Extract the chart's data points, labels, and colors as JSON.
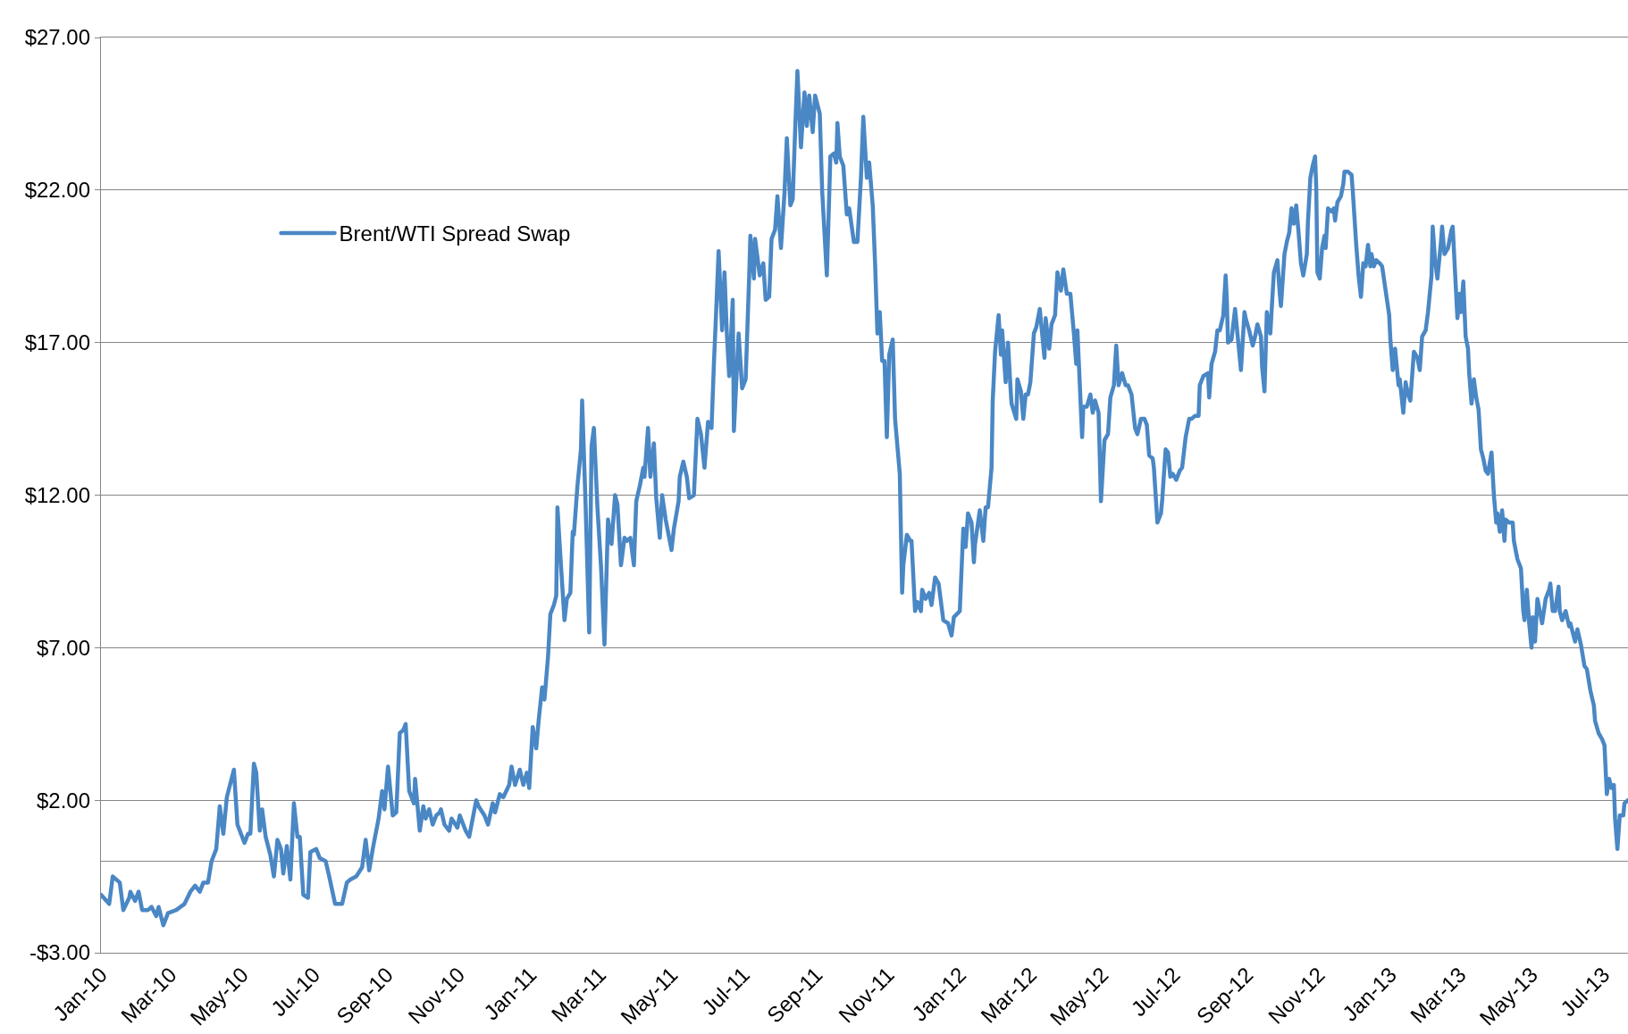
{
  "chart_data": {
    "type": "line",
    "xlim": [
      "2010-01-01",
      "2013-07-22"
    ],
    "ylim": [
      -3,
      27
    ],
    "xticks": [
      {
        "value": "2010-01-01",
        "label": "Jan-10"
      },
      {
        "value": "2010-03-01",
        "label": "Mar-10"
      },
      {
        "value": "2010-05-01",
        "label": "May-10"
      },
      {
        "value": "2010-07-01",
        "label": "Jul-10"
      },
      {
        "value": "2010-09-01",
        "label": "Sep-10"
      },
      {
        "value": "2010-11-01",
        "label": "Nov-10"
      },
      {
        "value": "2011-01-01",
        "label": "Jan-11"
      },
      {
        "value": "2011-03-01",
        "label": "Mar-11"
      },
      {
        "value": "2011-05-01",
        "label": "May-11"
      },
      {
        "value": "2011-07-01",
        "label": "Jul-11"
      },
      {
        "value": "2011-09-01",
        "label": "Sep-11"
      },
      {
        "value": "2011-11-01",
        "label": "Nov-11"
      },
      {
        "value": "2012-01-01",
        "label": "Jan-12"
      },
      {
        "value": "2012-03-01",
        "label": "Mar-12"
      },
      {
        "value": "2012-05-01",
        "label": "May-12"
      },
      {
        "value": "2012-07-01",
        "label": "Jul-12"
      },
      {
        "value": "2012-09-01",
        "label": "Sep-12"
      },
      {
        "value": "2012-11-01",
        "label": "Nov-12"
      },
      {
        "value": "2013-01-01",
        "label": "Jan-13"
      },
      {
        "value": "2013-03-01",
        "label": "Mar-13"
      },
      {
        "value": "2013-05-01",
        "label": "May-13"
      },
      {
        "value": "2013-07-01",
        "label": "Jul-13"
      }
    ],
    "yticks": [
      {
        "value": -3,
        "label": "-$3.00"
      },
      {
        "value": 2,
        "label": "$2.00"
      },
      {
        "value": 7,
        "label": "$7.00"
      },
      {
        "value": 12,
        "label": "$12.00"
      },
      {
        "value": 17,
        "label": "$17.00"
      },
      {
        "value": 22,
        "label": "$22.00"
      },
      {
        "value": 27,
        "label": "$27.00"
      }
    ],
    "grid": "y",
    "legend": "top left",
    "series": [
      {
        "name": "Brent/WTI Spread Swap",
        "color": "#4a87c5",
        "x": [
          "2010-01-01",
          "2010-01-08",
          "2010-01-11",
          "2010-01-17",
          "2010-01-20",
          "2010-01-25",
          "2010-01-26",
          "2010-01-30",
          "2010-02-02",
          "2010-02-05",
          "2010-02-10",
          "2010-02-13",
          "2010-02-17",
          "2010-02-19",
          "2010-02-23",
          "2010-02-27",
          "2010-03-06",
          "2010-03-13",
          "2010-03-18",
          "2010-03-22",
          "2010-03-26",
          "2010-03-29",
          "2010-04-02",
          "2010-04-05",
          "2010-04-09",
          "2010-04-12",
          "2010-04-15",
          "2010-04-18",
          "2010-04-24",
          "2010-04-27",
          "2010-05-03",
          "2010-05-06",
          "2010-05-08",
          "2010-05-11",
          "2010-05-13",
          "2010-05-16",
          "2010-05-18",
          "2010-05-21",
          "2010-05-25",
          "2010-05-28",
          "2010-05-31",
          "2010-06-03",
          "2010-06-05",
          "2010-06-08",
          "2010-06-11",
          "2010-06-14",
          "2010-06-17",
          "2010-06-19",
          "2010-06-22",
          "2010-06-26",
          "2010-06-28",
          "2010-07-03",
          "2010-07-06",
          "2010-07-11",
          "2010-07-14",
          "2010-07-19",
          "2010-07-25",
          "2010-07-29",
          "2010-08-01",
          "2010-08-06",
          "2010-08-11",
          "2010-08-14",
          "2010-08-17",
          "2010-08-20",
          "2010-08-25",
          "2010-08-28",
          "2010-08-30",
          "2010-09-02",
          "2010-09-06",
          "2010-09-09",
          "2010-09-12",
          "2010-09-15",
          "2010-09-17",
          "2010-09-20",
          "2010-09-24",
          "2010-09-25",
          "2010-09-29",
          "2010-10-02",
          "2010-10-04",
          "2010-10-07",
          "2010-10-10",
          "2010-10-13",
          "2010-10-16",
          "2010-10-17",
          "2010-10-20",
          "2010-10-24",
          "2010-10-26",
          "2010-10-31",
          "2010-11-02",
          "2010-11-07",
          "2010-11-10",
          "2010-11-13",
          "2010-11-16",
          "2010-11-18",
          "2010-11-23",
          "2010-11-26",
          "2010-11-30",
          "2010-12-02",
          "2010-12-06",
          "2010-12-09",
          "2010-12-14",
          "2010-12-16",
          "2010-12-19",
          "2010-12-23",
          "2010-12-26",
          "2010-12-29",
          "2010-12-31",
          "2011-01-03",
          "2011-01-06",
          "2011-01-08",
          "2011-01-11",
          "2011-01-13",
          "2011-01-16",
          "2011-01-18",
          "2011-01-21",
          "2011-01-23",
          "2011-01-24",
          "2011-01-27",
          "2011-01-30",
          "2011-02-01",
          "2011-02-04",
          "2011-02-06",
          "2011-02-07",
          "2011-02-10",
          "2011-02-13",
          "2011-02-14",
          "2011-02-17",
          "2011-02-20",
          "2011-02-22",
          "2011-02-24",
          "2011-02-27",
          "2011-03-02",
          "2011-03-05",
          "2011-03-08",
          "2011-03-11",
          "2011-03-14",
          "2011-03-16",
          "2011-03-19",
          "2011-03-22",
          "2011-03-24",
          "2011-03-27",
          "2011-03-30",
          "2011-04-01",
          "2011-04-04",
          "2011-04-07",
          "2011-04-08",
          "2011-04-11",
          "2011-04-13",
          "2011-04-16",
          "2011-04-18",
          "2011-04-21",
          "2011-04-23",
          "2011-04-26",
          "2011-05-01",
          "2011-05-03",
          "2011-05-07",
          "2011-05-08",
          "2011-05-11",
          "2011-05-14",
          "2011-05-16",
          "2011-05-20",
          "2011-05-23",
          "2011-05-26",
          "2011-05-29",
          "2011-06-01",
          "2011-06-04",
          "2011-06-06",
          "2011-06-08",
          "2011-06-10",
          "2011-06-13",
          "2011-06-15",
          "2011-06-17",
          "2011-06-19",
          "2011-06-22",
          "2011-06-23",
          "2011-06-27",
          "2011-06-30",
          "2011-07-03",
          "2011-07-06",
          "2011-07-07",
          "2011-07-10",
          "2011-07-11",
          "2011-07-15",
          "2011-07-18",
          "2011-07-20",
          "2011-07-23",
          "2011-07-25",
          "2011-07-28",
          "2011-07-30",
          "2011-08-02",
          "2011-08-05",
          "2011-08-07",
          "2011-08-10",
          "2011-08-12",
          "2011-08-14",
          "2011-08-16",
          "2011-08-19",
          "2011-08-22",
          "2011-08-24",
          "2011-08-26",
          "2011-08-29",
          "2011-08-31",
          "2011-09-04",
          "2011-09-06",
          "2011-09-10",
          "2011-09-13",
          "2011-09-16",
          "2011-09-18",
          "2011-09-19",
          "2011-09-21",
          "2011-09-24",
          "2011-09-27",
          "2011-09-29",
          "2011-10-03",
          "2011-10-06",
          "2011-10-09",
          "2011-10-11",
          "2011-10-14",
          "2011-10-16",
          "2011-10-19",
          "2011-10-21",
          "2011-10-23",
          "2011-10-25",
          "2011-10-27",
          "2011-10-29",
          "2011-10-31",
          "2011-11-02",
          "2011-11-05",
          "2011-11-07",
          "2011-11-11",
          "2011-11-13",
          "2011-11-14",
          "2011-11-17",
          "2011-11-20",
          "2011-11-21",
          "2011-11-24",
          "2011-11-26",
          "2011-11-29",
          "2011-11-30",
          "2011-12-03",
          "2011-12-06",
          "2011-12-08",
          "2011-12-11",
          "2011-12-14",
          "2011-12-18",
          "2011-12-22",
          "2011-12-25",
          "2011-12-27",
          "2012-01-01",
          "2012-01-04",
          "2012-01-06",
          "2012-01-08",
          "2012-01-11",
          "2012-01-13",
          "2012-01-14",
          "2012-01-18",
          "2012-01-21",
          "2012-01-23",
          "2012-01-25",
          "2012-01-28",
          "2012-01-29",
          "2012-01-31",
          "2012-02-03",
          "2012-02-05",
          "2012-02-06",
          "2012-02-09",
          "2012-02-11",
          "2012-02-13",
          "2012-02-14",
          "2012-02-18",
          "2012-02-19",
          "2012-02-22",
          "2012-02-24",
          "2012-02-26",
          "2012-02-28",
          "2012-03-01",
          "2012-03-04",
          "2012-03-06",
          "2012-03-09",
          "2012-03-11",
          "2012-03-13",
          "2012-03-14",
          "2012-03-17",
          "2012-03-19",
          "2012-03-22",
          "2012-03-24",
          "2012-03-27",
          "2012-03-29",
          "2012-04-01",
          "2012-04-04",
          "2012-04-07",
          "2012-04-09",
          "2012-04-10",
          "2012-04-14",
          "2012-04-15",
          "2012-04-18",
          "2012-04-21",
          "2012-04-23",
          "2012-04-25",
          "2012-04-28",
          "2012-04-30",
          "2012-05-03",
          "2012-05-06",
          "2012-05-08",
          "2012-05-11",
          "2012-05-13",
          "2012-05-15",
          "2012-05-18",
          "2012-05-21",
          "2012-05-23",
          "2012-05-26",
          "2012-05-29",
          "2012-05-31",
          "2012-06-03",
          "2012-06-06",
          "2012-06-08",
          "2012-06-10",
          "2012-06-13",
          "2012-06-14",
          "2012-06-17",
          "2012-06-20",
          "2012-06-21",
          "2012-06-24",
          "2012-06-26",
          "2012-06-28",
          "2012-06-30",
          "2012-07-03",
          "2012-07-06",
          "2012-07-08",
          "2012-07-11",
          "2012-07-14",
          "2012-07-16",
          "2012-07-19",
          "2012-07-22",
          "2012-07-23",
          "2012-07-26",
          "2012-07-30",
          "2012-07-31",
          "2012-08-02",
          "2012-08-05",
          "2012-08-07",
          "2012-08-09",
          "2012-08-12",
          "2012-08-14",
          "2012-08-15",
          "2012-08-16",
          "2012-08-19",
          "2012-08-22",
          "2012-08-24",
          "2012-08-27",
          "2012-08-30",
          "2012-08-31",
          "2012-09-03",
          "2012-09-06",
          "2012-09-08",
          "2012-09-10",
          "2012-09-13",
          "2012-09-14",
          "2012-09-16",
          "2012-09-18",
          "2012-09-21",
          "2012-09-22",
          "2012-09-24",
          "2012-09-27",
          "2012-09-29",
          "2012-09-30",
          "2012-10-03",
          "2012-10-05",
          "2012-10-07",
          "2012-10-09",
          "2012-10-11",
          "2012-10-13",
          "2012-10-15",
          "2012-10-17",
          "2012-10-19",
          "2012-10-22",
          "2012-10-23",
          "2012-10-25",
          "2012-10-27",
          "2012-10-29",
          "2012-10-30",
          "2012-10-31",
          "2012-11-02",
          "2012-11-04",
          "2012-11-06",
          "2012-11-07",
          "2012-11-09",
          "2012-11-12",
          "2012-11-14",
          "2012-11-15",
          "2012-11-17",
          "2012-11-20",
          "2012-11-22",
          "2012-11-23",
          "2012-11-26",
          "2012-11-29",
          "2012-11-30",
          "2012-12-03",
          "2012-12-05",
          "2012-12-07",
          "2012-12-09",
          "2012-12-11",
          "2012-12-13",
          "2012-12-15",
          "2012-12-16",
          "2012-12-18",
          "2012-12-20",
          "2012-12-23",
          "2012-12-25",
          "2012-12-28",
          "2012-12-31",
          "2013-01-01",
          "2013-01-03",
          "2013-01-05",
          "2013-01-08",
          "2013-01-09",
          "2013-01-12",
          "2013-01-14",
          "2013-01-16",
          "2013-01-18",
          "2013-01-21",
          "2013-01-24",
          "2013-01-26",
          "2013-01-28",
          "2013-01-31",
          "2013-02-02",
          "2013-02-05",
          "2013-02-06",
          "2013-02-08",
          "2013-02-10",
          "2013-02-13",
          "2013-02-14",
          "2013-02-16",
          "2013-02-19",
          "2013-02-22",
          "2013-02-23",
          "2013-02-25",
          "2013-02-27",
          "2013-03-01",
          "2013-03-02",
          "2013-03-04",
          "2013-03-06",
          "2013-03-08",
          "2013-03-09",
          "2013-03-11",
          "2013-03-13",
          "2013-03-15",
          "2013-03-17",
          "2013-03-19",
          "2013-03-21",
          "2013-03-23",
          "2013-03-25",
          "2013-03-28",
          "2013-03-30",
          "2013-04-01",
          "2013-04-02",
          "2013-04-04",
          "2013-04-06",
          "2013-04-08",
          "2013-04-09",
          "2013-04-12",
          "2013-04-15",
          "2013-04-16",
          "2013-04-19",
          "2013-04-22",
          "2013-04-24",
          "2013-04-25",
          "2013-04-27",
          "2013-04-29",
          "2013-05-01",
          "2013-05-02",
          "2013-05-04",
          "2013-05-06",
          "2013-05-08",
          "2013-05-10",
          "2013-05-13",
          "2013-05-16",
          "2013-05-17",
          "2013-05-19",
          "2013-05-21",
          "2013-05-24",
          "2013-05-25",
          "2013-05-27",
          "2013-05-30",
          "2013-06-02",
          "2013-06-03",
          "2013-06-07",
          "2013-06-09",
          "2013-06-12",
          "2013-06-15",
          "2013-06-17",
          "2013-06-20",
          "2013-06-23",
          "2013-06-24",
          "2013-06-27",
          "2013-06-30",
          "2013-07-02",
          "2013-07-04",
          "2013-07-06",
          "2013-07-08",
          "2013-07-10",
          "2013-07-11",
          "2013-07-13",
          "2013-07-15",
          "2013-07-18",
          "2013-07-19",
          "2013-07-22"
        ],
        "values": [
          -1.1,
          -1.4,
          -0.5,
          -0.7,
          -1.6,
          -1.2,
          -1.0,
          -1.3,
          -1.0,
          -1.6,
          -1.6,
          -1.5,
          -1.8,
          -1.5,
          -2.1,
          -1.7,
          -1.6,
          -1.4,
          -1.0,
          -0.8,
          -1.0,
          -0.7,
          -0.7,
          0.0,
          0.4,
          1.8,
          0.9,
          2.1,
          3.0,
          1.2,
          0.6,
          0.9,
          0.9,
          3.2,
          2.9,
          1.0,
          1.7,
          0.8,
          0.2,
          -0.5,
          0.7,
          0.4,
          -0.4,
          0.5,
          -0.6,
          1.9,
          0.8,
          0.8,
          -1.1,
          -1.2,
          0.3,
          0.4,
          0.1,
          0.0,
          -0.5,
          -1.4,
          -1.4,
          -0.7,
          -0.6,
          -0.5,
          -0.2,
          0.7,
          -0.3,
          0.4,
          1.4,
          2.3,
          1.7,
          3.1,
          1.5,
          1.6,
          4.2,
          4.3,
          4.5,
          2.3,
          1.9,
          2.7,
          1.0,
          1.8,
          1.4,
          1.7,
          1.2,
          1.5,
          1.6,
          1.7,
          1.2,
          1.0,
          1.4,
          1.1,
          1.5,
          1.0,
          0.8,
          1.4,
          2.0,
          1.8,
          1.5,
          1.2,
          1.9,
          1.6,
          2.2,
          2.1,
          2.5,
          3.1,
          2.5,
          3.0,
          2.5,
          2.9,
          2.4,
          4.4,
          3.7,
          4.6,
          5.7,
          5.3,
          6.7,
          8.1,
          8.4,
          8.7,
          11.6,
          9.7,
          7.9,
          8.6,
          8.8,
          10.8,
          10.7,
          12.3,
          13.5,
          15.1,
          11.6,
          7.5,
          13.6,
          14.2,
          11.6,
          9.7,
          7.1,
          11.2,
          10.4,
          12.0,
          11.7,
          9.7,
          10.6,
          10.5,
          10.6,
          9.7,
          11.8,
          12.3,
          12.9,
          12.6,
          14.2,
          12.6,
          13.7,
          11.9,
          10.6,
          12.0,
          11.2,
          10.2,
          10.9,
          11.8,
          12.6,
          13.1,
          12.6,
          11.9,
          12.0,
          14.5,
          14.0,
          12.9,
          14.4,
          14.2,
          16.3,
          18.1,
          20.0,
          17.4,
          19.3,
          17.3,
          15.9,
          18.4,
          14.1,
          17.3,
          15.5,
          15.8,
          19.2,
          20.5,
          19.1,
          20.4,
          19.2,
          19.6,
          18.4,
          18.5,
          20.4,
          20.7,
          21.8,
          20.1,
          21.9,
          23.7,
          21.5,
          21.7,
          23.9,
          25.9,
          23.4,
          25.2,
          24.1,
          25.1,
          23.9,
          25.1,
          24.5,
          22.0,
          19.2,
          23.1,
          23.2,
          22.9,
          24.2,
          23.1,
          22.8,
          21.2,
          21.4,
          20.3,
          20.3,
          22.4,
          24.4,
          22.4,
          22.9,
          21.5,
          19.6,
          17.3,
          18.0,
          16.4,
          16.4,
          13.9,
          16.6,
          17.1,
          14.5,
          12.7,
          8.8,
          9.7,
          10.7,
          10.5,
          10.5,
          8.2,
          8.5,
          8.2,
          8.9,
          8.6,
          8.8,
          8.4,
          9.3,
          9.1,
          7.9,
          7.8,
          7.4,
          8.0,
          8.2,
          10.9,
          10.3,
          11.4,
          11.1,
          9.8,
          10.4,
          11.5,
          10.5,
          11.6,
          11.6,
          12.9,
          15.1,
          16.7,
          17.9,
          16.6,
          17.4,
          15.7,
          17.0,
          15.6,
          15.0,
          14.5,
          15.8,
          15.4,
          14.5,
          15.3,
          15.3,
          15.7,
          17.3,
          17.5,
          18.1,
          17.3,
          16.5,
          17.8,
          16.8,
          17.6,
          17.9,
          19.3,
          18.7,
          19.4,
          18.6,
          18.6,
          17.3,
          16.3,
          17.4,
          13.9,
          14.9,
          14.9,
          15.3,
          14.7,
          15.1,
          14.7,
          11.8,
          13.8,
          14.0,
          15.2,
          15.6,
          16.9,
          15.6,
          16.0,
          15.6,
          15.6,
          15.3,
          14.2,
          14.0,
          14.5,
          14.5,
          14.3,
          13.3,
          13.2,
          12.9,
          11.1,
          11.4,
          11.8,
          13.5,
          13.4,
          12.6,
          12.7,
          12.5,
          12.8,
          12.9,
          13.9,
          14.5,
          14.5,
          14.6,
          14.6,
          15.6,
          15.9,
          16.0,
          15.2,
          16.3,
          16.7,
          17.4,
          17.4,
          17.9,
          19.2,
          18.4,
          17.0,
          17.1,
          18.1,
          17.3,
          16.1,
          18.0,
          17.8,
          17.4,
          16.9,
          17.2,
          17.6,
          17.2,
          16.2,
          15.4,
          18.0,
          17.3,
          18.0,
          19.3,
          19.7,
          18.6,
          18.2,
          19.9,
          20.3,
          20.6,
          21.4,
          20.9,
          21.5,
          20.6,
          19.6,
          19.2,
          19.9,
          21.0,
          22.4,
          22.8,
          23.1,
          22.1,
          19.3,
          19.1,
          20.1,
          20.5,
          20.1,
          21.4,
          21.3,
          21.4,
          21.0,
          21.6,
          21.8,
          22.2,
          22.6,
          22.6,
          22.5,
          22.0,
          20.2,
          19.2,
          18.5,
          19.6,
          19.5,
          20.2,
          19.5,
          19.9,
          19.5,
          19.7,
          19.6,
          19.5,
          18.7,
          17.9,
          17.1,
          16.1,
          16.8,
          15.6,
          15.8,
          14.7,
          15.7,
          15.3,
          15.1,
          16.7,
          16.5,
          16.1,
          17.2,
          17.4,
          18.0,
          19.2,
          20.8,
          19.7,
          19.1,
          20.3,
          20.8,
          19.9,
          20.1,
          20.7,
          20.8,
          19.3,
          17.8,
          18.6,
          18.0,
          19.0,
          17.2,
          16.8,
          16.0,
          15.0,
          15.8,
          15.2,
          14.8,
          13.5,
          13.2,
          12.8,
          12.7,
          13.4,
          12.0,
          11.1,
          11.4,
          10.8,
          11.5,
          10.5,
          11.2,
          11.1,
          11.1,
          10.5,
          9.9,
          9.6,
          8.2,
          7.9,
          8.9,
          7.8,
          7.0,
          8.0,
          7.2,
          8.6,
          8.2,
          7.8,
          8.6,
          8.9,
          9.1,
          8.2,
          8.2,
          9.0,
          8.2,
          7.9,
          8.2,
          7.7,
          7.8,
          7.2,
          7.6,
          7.1,
          6.4,
          6.3,
          5.6,
          5.1,
          4.6,
          4.2,
          4.0,
          3.8,
          2.2,
          2.7,
          2.4,
          2.5,
          1.4,
          0.4,
          1.5,
          1.5,
          1.9,
          2.0
        ]
      }
    ]
  }
}
